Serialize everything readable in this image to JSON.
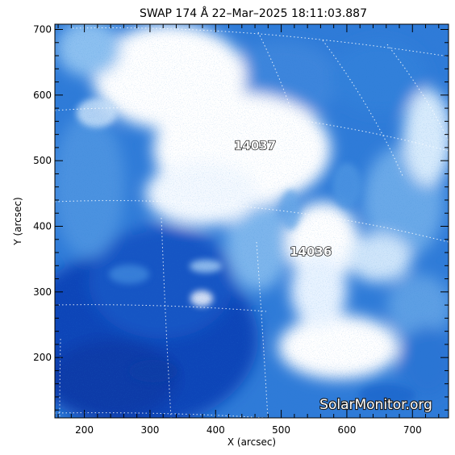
{
  "title": "SWAP 174 Å 22–Mar–2025 18:11:03.887",
  "xlabel": "X (arcsec)",
  "ylabel": "Y (arcsec)",
  "x_ticks": [
    "200",
    "300",
    "400",
    "500",
    "600",
    "700"
  ],
  "y_ticks": [
    "200",
    "300",
    "400",
    "500",
    "600",
    "700"
  ],
  "x_range": [
    155,
    755
  ],
  "y_range": [
    108,
    708
  ],
  "regions": [
    {
      "label": "14037",
      "x": 460,
      "y": 517
    },
    {
      "label": "14036",
      "x": 545,
      "y": 355
    }
  ],
  "watermark": "SolarMonitor.org",
  "colors": {
    "background": "#ffffff",
    "deep_blue": "#0a3fb0",
    "mid_blue": "#3a86dc",
    "light_blue": "#9ecaf2",
    "bright": "#ffffff"
  },
  "overlays": {
    "heliographic_grid": "dotted white",
    "minor_ticks": true
  }
}
